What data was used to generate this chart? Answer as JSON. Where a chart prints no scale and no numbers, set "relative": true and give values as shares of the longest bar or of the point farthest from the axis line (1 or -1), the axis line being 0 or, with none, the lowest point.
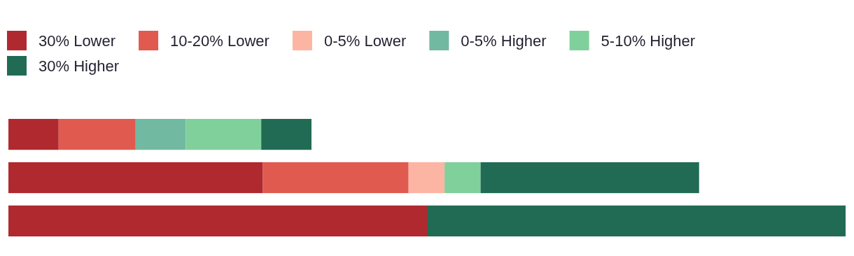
{
  "chart_data": {
    "type": "bar",
    "orientation": "horizontal",
    "stacked": true,
    "relative": true,
    "legend": "top left",
    "categories": [
      null,
      null,
      null
    ],
    "series": [
      {
        "name": "30% Lower",
        "color": "#b0292e",
        "values": [
          0.06,
          0.304,
          0.5
        ]
      },
      {
        "name": "10-20% Lower",
        "color": "#e05a4f",
        "values": [
          0.092,
          0.174,
          0
        ]
      },
      {
        "name": "0-5% Lower",
        "color": "#fdb5a3",
        "values": [
          0,
          0.043,
          0
        ]
      },
      {
        "name": "0-5% Higher",
        "color": "#72b9a2",
        "values": [
          0.06,
          0,
          0
        ]
      },
      {
        "name": "5-10% Higher",
        "color": "#80d09c",
        "values": [
          0.09,
          0.043,
          0
        ]
      },
      {
        "name": "30% Higher",
        "color": "#216b55",
        "values": [
          0.06,
          0.261,
          0.5
        ]
      }
    ]
  }
}
